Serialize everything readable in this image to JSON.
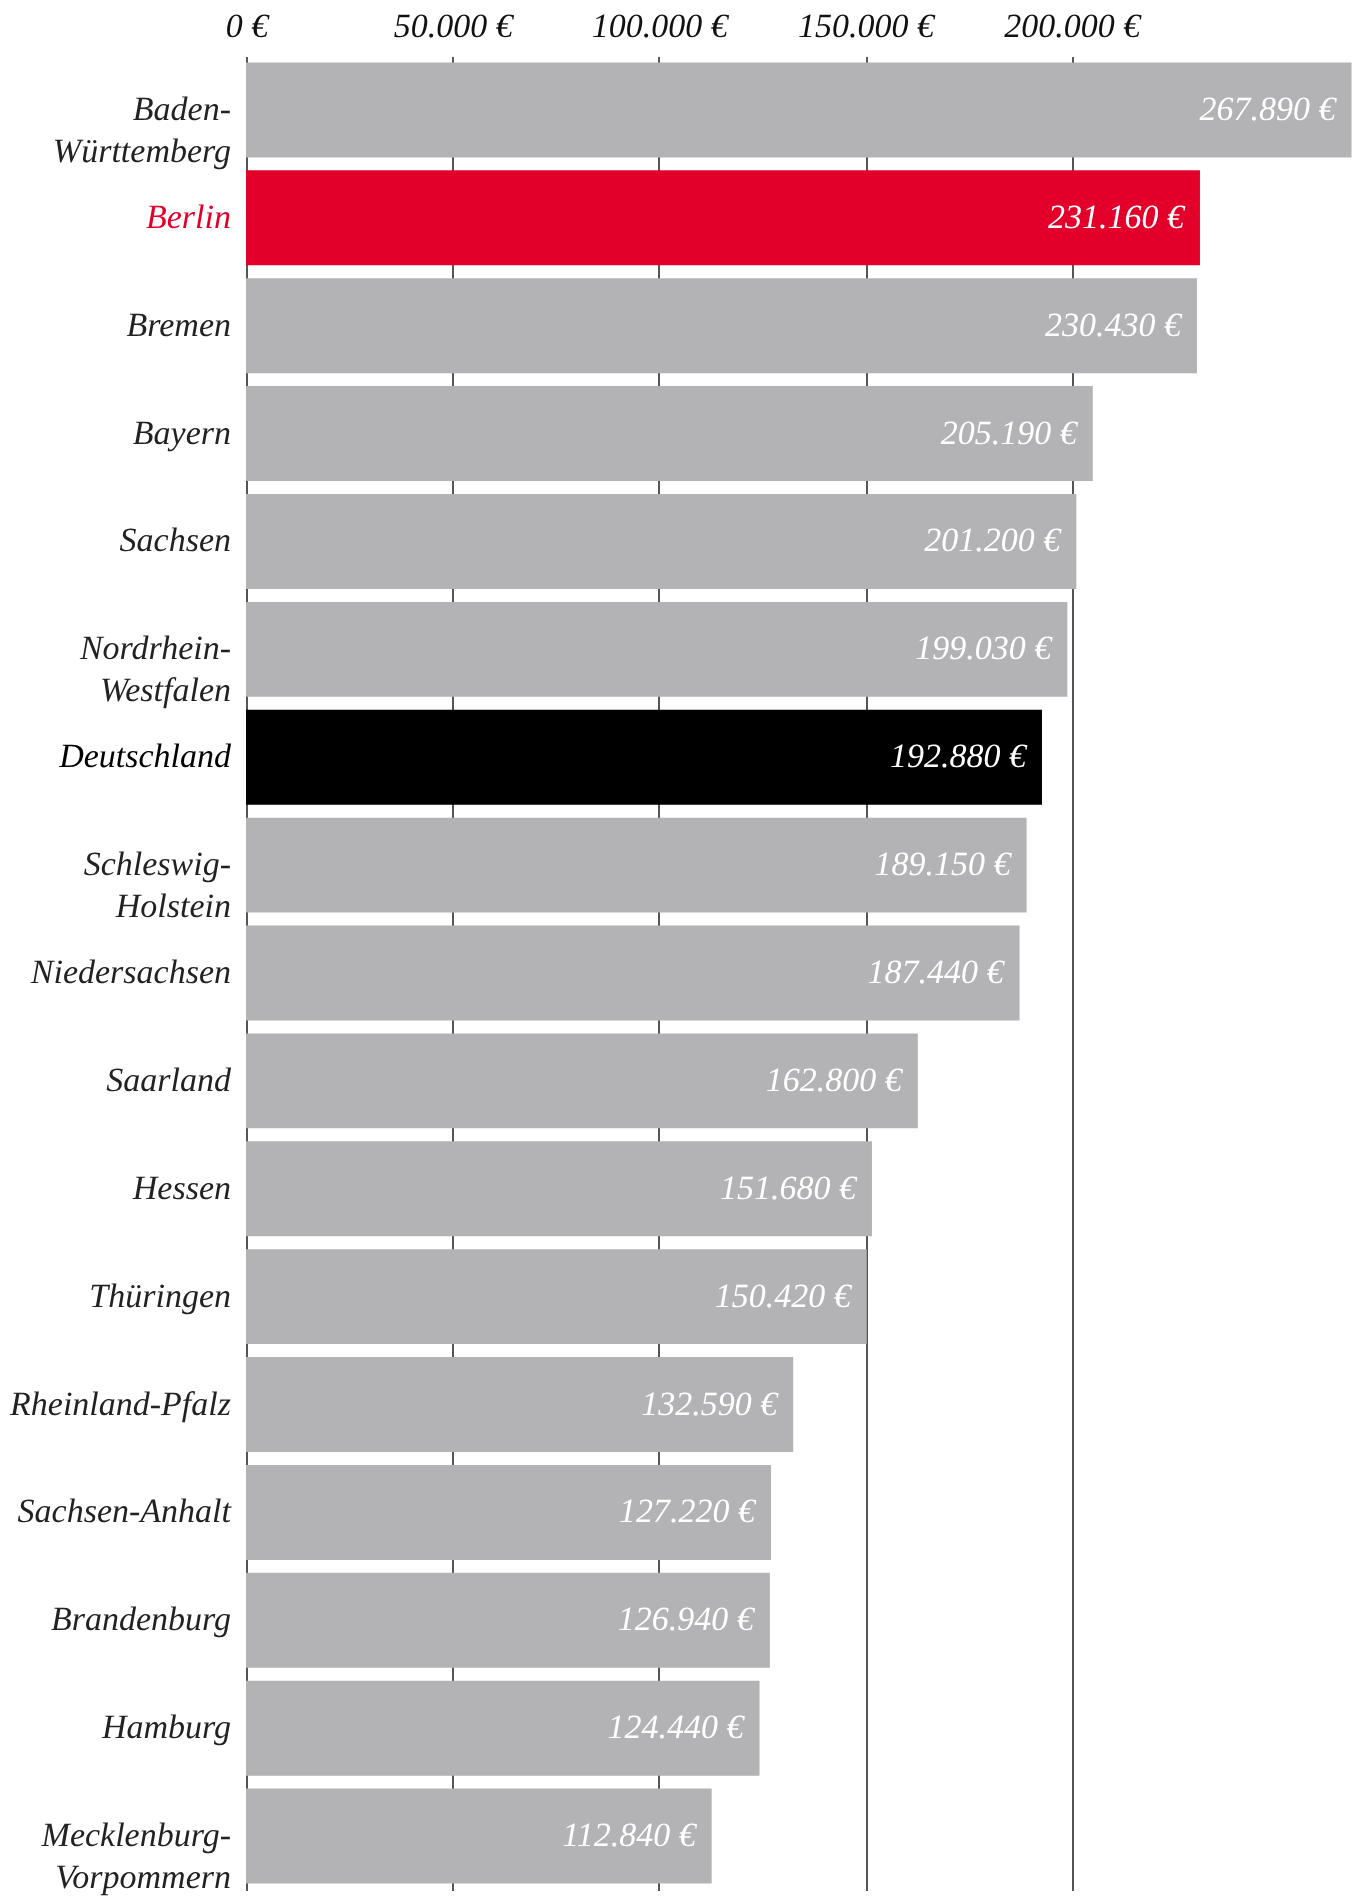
{
  "chart_data": {
    "type": "bar",
    "orientation": "horizontal",
    "categories": [
      "Baden-Württemberg",
      "Berlin",
      "Bremen",
      "Bayern",
      "Sachsen",
      "Nordrhein-Westfalen",
      "Deutschland",
      "Schleswig-Holstein",
      "Niedersachsen",
      "Saarland",
      "Hessen",
      "Thüringen",
      "Rheinland-Pfalz",
      "Sachsen-Anhalt",
      "Brandenburg",
      "Hamburg",
      "Mecklenburg-Vorpommern"
    ],
    "values": [
      267890,
      231160,
      230430,
      205190,
      201200,
      199030,
      192880,
      189150,
      187440,
      162800,
      151680,
      150420,
      132590,
      127220,
      126940,
      124440,
      112840
    ],
    "colors": [
      "#b3b3b5",
      "#e2002a",
      "#b3b3b5",
      "#b3b3b5",
      "#b3b3b5",
      "#b3b3b5",
      "#000000",
      "#b3b3b5",
      "#b3b3b5",
      "#b3b3b5",
      "#b3b3b5",
      "#b3b3b5",
      "#b3b3b5",
      "#b3b3b5",
      "#b3b3b5",
      "#b3b3b5",
      "#b3b3b5"
    ],
    "value_labels": [
      "267.890 €",
      "231.160 €",
      "230.430 €",
      "205.190 €",
      "201.200 €",
      "199.030 €",
      "192.880 €",
      "189.150 €",
      "187.440 €",
      "162.800 €",
      "151.680 €",
      "150.420 €",
      "132.590 €",
      "127.220 €",
      "126.940 €",
      "124.440 €",
      "112.840 €"
    ],
    "xlim": [
      0,
      268000
    ],
    "xticks": [
      {
        "value": 0,
        "label": "0 €"
      },
      {
        "value": 50000,
        "label": "50.000 €"
      },
      {
        "value": 100000,
        "label": "100.000 €"
      },
      {
        "value": 150000,
        "label": "150.000 €"
      },
      {
        "value": 200000,
        "label": "200.000 €"
      }
    ],
    "grid": "x"
  }
}
